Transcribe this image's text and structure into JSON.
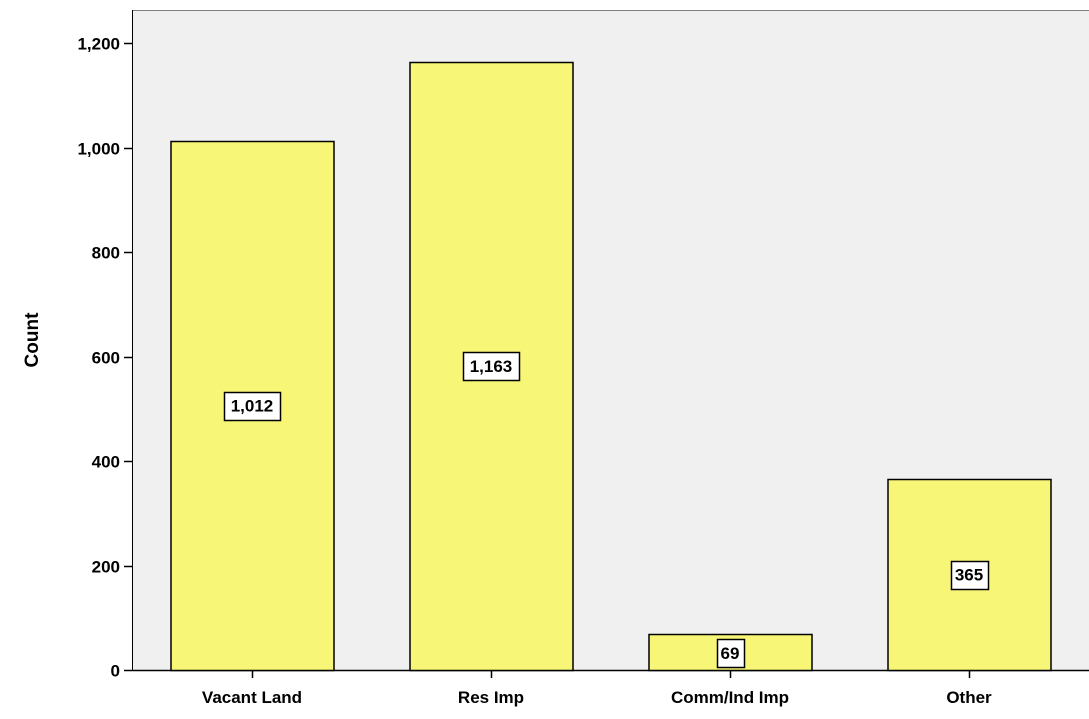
{
  "chart_data": {
    "type": "bar",
    "categories": [
      "Vacant Land",
      "Res Imp",
      "Comm/Ind Imp",
      "Other"
    ],
    "values": [
      1012,
      1163,
      69,
      365
    ],
    "data_labels": [
      "1,012",
      "1,163",
      "69",
      "365"
    ],
    "title": "",
    "xlabel": "",
    "ylabel": "Count",
    "ylim": [
      0,
      1200
    ],
    "yticks": [
      0,
      200,
      400,
      600,
      800,
      1000,
      1200
    ],
    "ytick_labels": [
      "0",
      "200",
      "400",
      "600",
      "800",
      "1,000",
      "1,200"
    ],
    "grid": false,
    "legend": "none",
    "colors": {
      "bar_fill": "#f8f677",
      "bar_stroke": "#000000",
      "plot_background": "#f0f0f0",
      "axis": "#000000",
      "frame": "#808080",
      "label_box_fill": "#ffffff"
    }
  }
}
